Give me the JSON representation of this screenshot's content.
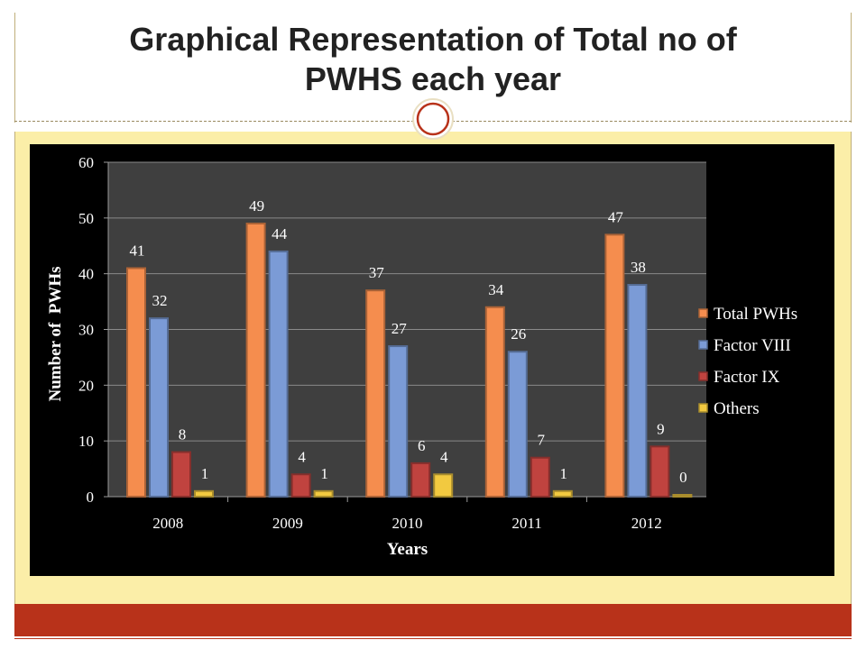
{
  "slide": {
    "title_line1": "Graphical Representation of Total no of",
    "title_line2": "PWHS each year"
  },
  "colors": {
    "cream": "#fbeea8",
    "accent_bar": "#b8321a",
    "plot_area": "#3f3f3f"
  },
  "chart_data": {
    "type": "bar",
    "title": "",
    "xlabel": "Years",
    "ylabel": "Number of  PWHs",
    "categories": [
      "2008",
      "2009",
      "2010",
      "2011",
      "2012"
    ],
    "ylim": [
      0,
      60
    ],
    "yticks": [
      0,
      10,
      20,
      30,
      40,
      50,
      60
    ],
    "grid": true,
    "legend_position": "right",
    "series": [
      {
        "name": "Total PWHs",
        "color": "#f58d4e",
        "values": [
          41,
          49,
          37,
          34,
          47
        ]
      },
      {
        "name": "Factor VIII",
        "color": "#7b9bd6",
        "values": [
          32,
          44,
          27,
          26,
          38
        ]
      },
      {
        "name": "Factor IX",
        "color": "#c0433f",
        "values": [
          8,
          4,
          6,
          7,
          9
        ]
      },
      {
        "name": "Others",
        "color": "#f2c940",
        "values": [
          1,
          1,
          4,
          1,
          0
        ]
      }
    ]
  }
}
